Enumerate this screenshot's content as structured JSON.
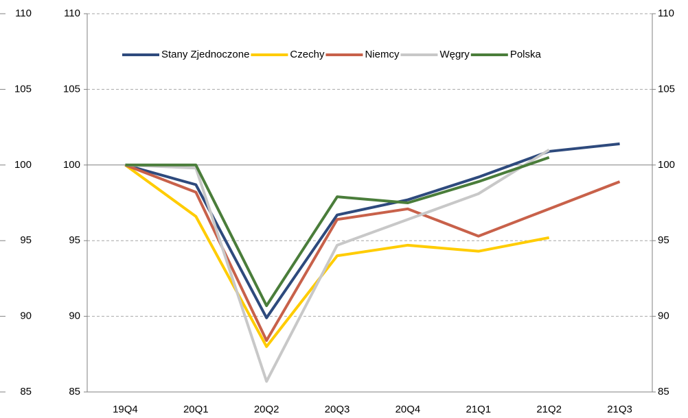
{
  "chart_data": {
    "type": "line",
    "categories": [
      "19Q4",
      "20Q1",
      "20Q2",
      "20Q3",
      "20Q4",
      "21Q1",
      "21Q2",
      "21Q3"
    ],
    "series": [
      {
        "name": "Stany Zjednoczone",
        "color": "#2e4a7d",
        "values": [
          100,
          98.7,
          89.9,
          96.7,
          97.7,
          99.2,
          100.9,
          101.4
        ]
      },
      {
        "name": "Czechy",
        "color": "#ffcc00",
        "values": [
          100,
          96.6,
          88.0,
          94.0,
          94.7,
          94.3,
          95.2,
          null
        ]
      },
      {
        "name": "Niemcy",
        "color": "#c8614a",
        "values": [
          100,
          98.2,
          88.4,
          96.4,
          97.1,
          95.3,
          97.1,
          98.9
        ]
      },
      {
        "name": "Węgry",
        "color": "#c8c8c8",
        "values": [
          100,
          99.8,
          85.7,
          94.7,
          96.4,
          98.1,
          101.0,
          null
        ]
      },
      {
        "name": "Polska",
        "color": "#4a7d3a",
        "values": [
          100,
          100,
          90.7,
          97.9,
          97.5,
          98.9,
          100.5,
          null
        ]
      }
    ],
    "ylim": [
      85,
      110
    ],
    "yticks": [
      85,
      90,
      95,
      100,
      105,
      110
    ],
    "y2lim": [
      85,
      110
    ],
    "y2ticks": [
      85,
      90,
      95,
      100,
      105,
      110
    ],
    "grid": true,
    "legend": "top"
  }
}
